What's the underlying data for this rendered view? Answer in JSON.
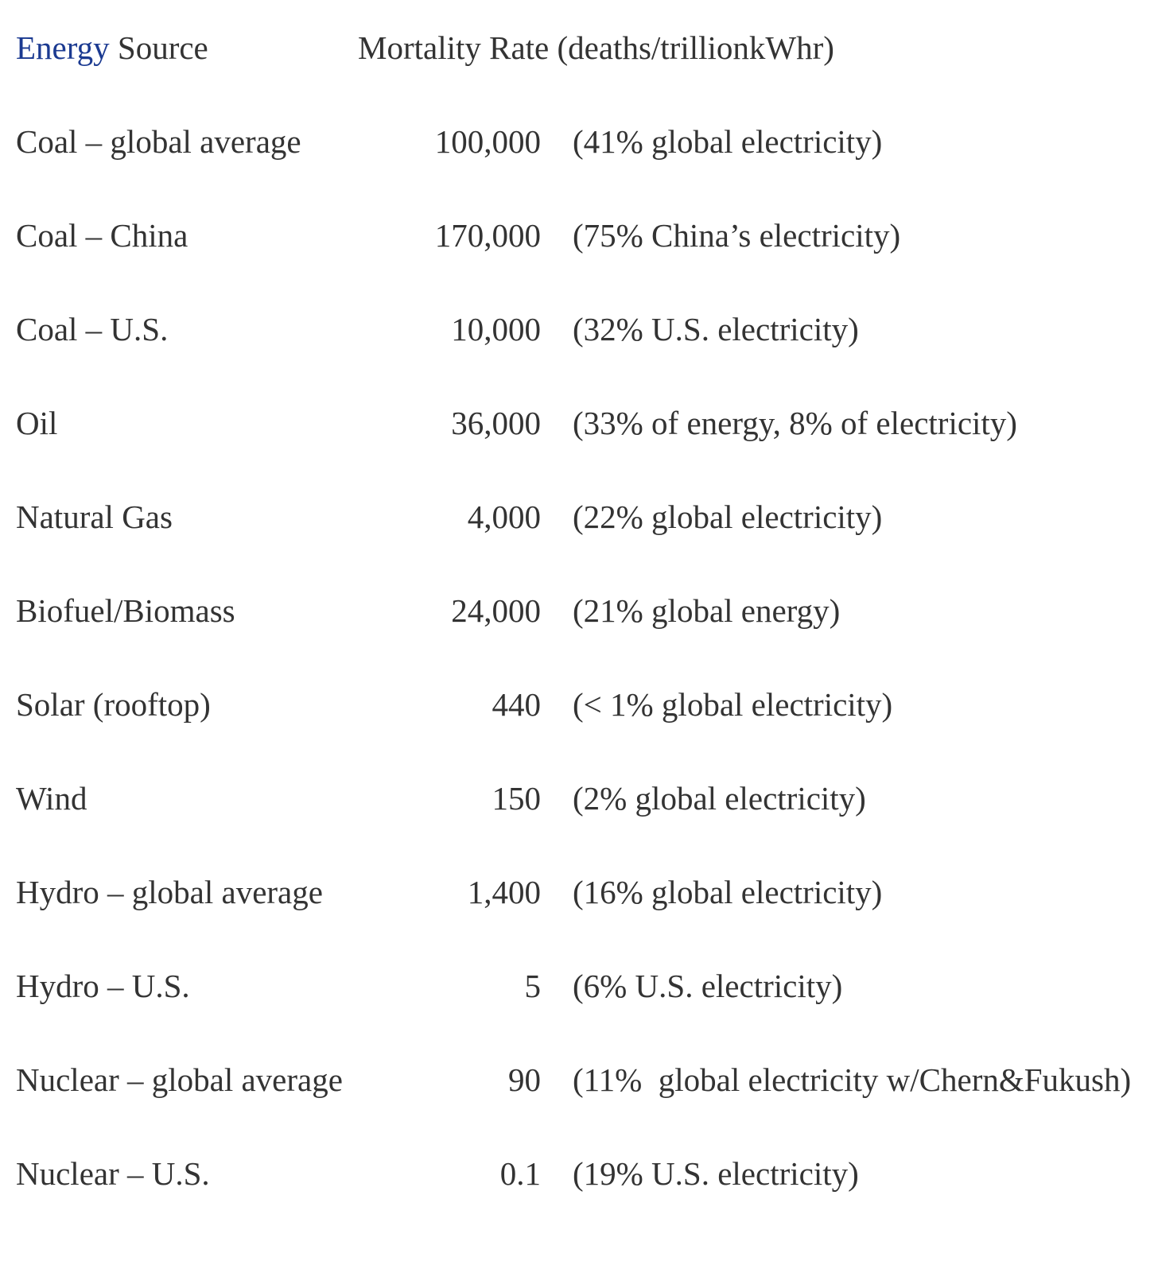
{
  "page": {
    "background_color": "#ffffff",
    "text_color": "#333333",
    "link_color": "#1b3a91"
  },
  "header": {
    "source_link_label": "Energy",
    "source_rest_label": " Source",
    "rate_label": "Mortality Rate (deaths/trillionkWhr)"
  },
  "rows": [
    {
      "source": "Coal – global average",
      "rate": "100,000",
      "note": "(41% global electricity)"
    },
    {
      "source": "Coal – China",
      "rate": "170,000",
      "note": "(75% China’s electricity)"
    },
    {
      "source": "Coal – U.S.",
      "rate": "10,000",
      "note": "(32% U.S. electricity)"
    },
    {
      "source": "Oil",
      "rate": "36,000",
      "note": "(33% of energy, 8% of electricity)"
    },
    {
      "source": "Natural Gas",
      "rate": "4,000",
      "note": "(22% global electricity)"
    },
    {
      "source": "Biofuel/Biomass",
      "rate": "24,000",
      "note": "(21% global energy)"
    },
    {
      "source": "Solar (rooftop)",
      "rate": "440",
      "note": "(< 1% global electricity)"
    },
    {
      "source": "Wind",
      "rate": "150",
      "note": "(2% global electricity)"
    },
    {
      "source": "Hydro – global average",
      "rate": "1,400",
      "note": "(16% global electricity)"
    },
    {
      "source": "Hydro – U.S.",
      "rate": "5",
      "note": "(6% U.S. electricity)"
    },
    {
      "source": "Nuclear – global average",
      "rate": "90",
      "note": "(11%  global electricity w/Chern&Fukush)"
    },
    {
      "source": "Nuclear – U.S.",
      "rate": "0.1",
      "note": "(19% U.S. electricity)"
    }
  ]
}
